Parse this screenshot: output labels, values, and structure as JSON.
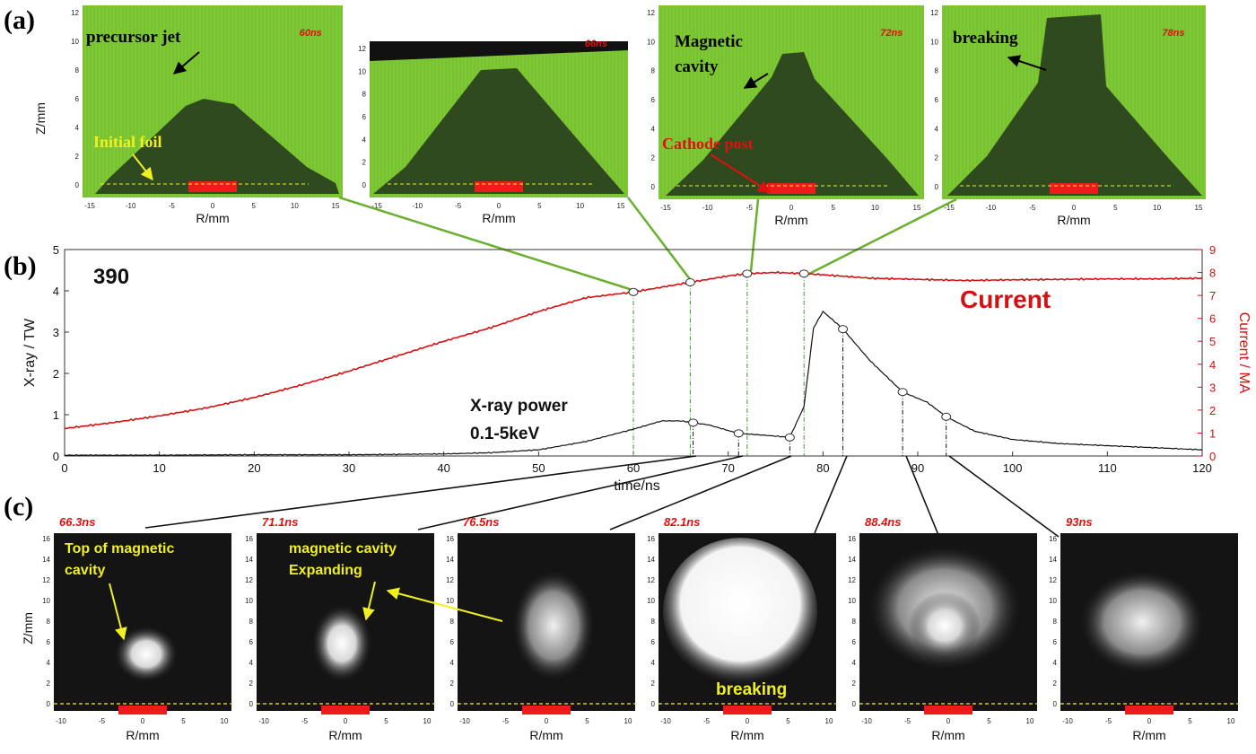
{
  "panel_labels": {
    "a": "(a)",
    "b": "(b)",
    "c": "(c)"
  },
  "panel_a": {
    "z_axis_label": "Z/mm",
    "r_axis_label": "R/mm",
    "z_ticks": [
      "0",
      "2",
      "4",
      "6",
      "8",
      "10",
      "12"
    ],
    "r_ticks": [
      "-15",
      "-10",
      "-5",
      "0",
      "5",
      "10",
      "15"
    ],
    "frames": [
      {
        "time": "60ns",
        "annotations": [
          "precursor jet",
          "Initial foil"
        ]
      },
      {
        "time": "66ns",
        "annotations": []
      },
      {
        "time": "72ns",
        "annotations": [
          "Magnetic",
          "cavity",
          "Cathode post"
        ]
      },
      {
        "time": "78ns",
        "annotations": [
          "breaking"
        ]
      }
    ]
  },
  "panel_b": {
    "shot_number": "390",
    "current_label": "Current",
    "xray_label_line1": "X-ray power",
    "xray_label_line2": "0.1-5keV",
    "left_axis_label": "X-ray / TW",
    "right_axis_label": "Current / MA",
    "x_axis_label": "time/ns",
    "x_ticks": [
      "0",
      "10",
      "20",
      "30",
      "40",
      "50",
      "60",
      "70",
      "80",
      "90",
      "100",
      "110",
      "120"
    ],
    "left_ticks": [
      "0",
      "1",
      "2",
      "3",
      "4",
      "5"
    ],
    "right_ticks": [
      "0",
      "1",
      "2",
      "3",
      "4",
      "5",
      "6",
      "7",
      "8",
      "9"
    ]
  },
  "panel_c": {
    "z_axis_label": "Z/mm",
    "r_axis_label": "R/mm",
    "z_ticks": [
      "0",
      "2",
      "4",
      "6",
      "8",
      "10",
      "12",
      "14",
      "16"
    ],
    "r_ticks": [
      "-10",
      "-5",
      "0",
      "5",
      "10"
    ],
    "frames": [
      {
        "time": "66.3ns",
        "annotations": [
          "Top of magnetic",
          "cavity"
        ]
      },
      {
        "time": "71.1ns",
        "annotations": [
          "magnetic cavity",
          "Expanding"
        ]
      },
      {
        "time": "76.5ns",
        "annotations": []
      },
      {
        "time": "82.1ns",
        "annotations": [
          "breaking"
        ]
      },
      {
        "time": "88.4ns",
        "annotations": []
      },
      {
        "time": "93ns",
        "annotations": []
      }
    ]
  },
  "chart_data": {
    "type": "line",
    "xlabel": "time/ns",
    "ylabel": "X-ray / TW",
    "y2label": "Current / MA",
    "xlim": [
      0,
      120
    ],
    "ylim": [
      0,
      5
    ],
    "y2lim": [
      0,
      9
    ],
    "grid": false,
    "series": [
      {
        "name": "Current",
        "axis": "right",
        "color": "#d41010",
        "x": [
          0,
          5,
          10,
          15,
          20,
          25,
          30,
          35,
          40,
          45,
          50,
          55,
          60,
          65,
          70,
          72,
          75,
          78,
          80,
          85,
          90,
          95,
          100,
          105,
          110,
          115,
          120
        ],
        "y": [
          1.2,
          1.45,
          1.75,
          2.1,
          2.55,
          3.1,
          3.7,
          4.35,
          5.0,
          5.6,
          6.3,
          6.9,
          7.15,
          7.5,
          7.85,
          7.95,
          8.0,
          7.95,
          7.9,
          7.75,
          7.7,
          7.65,
          7.68,
          7.7,
          7.72,
          7.72,
          7.75
        ]
      },
      {
        "name": "X-ray power",
        "axis": "left",
        "color": "#111111",
        "x": [
          0,
          10,
          20,
          30,
          40,
          45,
          50,
          55,
          60,
          63,
          65,
          68,
          71,
          74,
          76.5,
          78,
          79,
          80,
          82,
          85,
          88.4,
          91,
          93,
          96,
          100,
          105,
          110,
          115,
          120
        ],
        "y": [
          0.02,
          0.02,
          0.03,
          0.03,
          0.05,
          0.08,
          0.15,
          0.35,
          0.65,
          0.85,
          0.85,
          0.75,
          0.55,
          0.5,
          0.45,
          1.2,
          3.1,
          3.5,
          3.1,
          2.3,
          1.55,
          1.3,
          0.95,
          0.6,
          0.4,
          0.3,
          0.25,
          0.2,
          0.15
        ]
      }
    ],
    "markers": {
      "current_times": [
        60,
        66,
        72,
        78
      ],
      "xray_times": [
        66.3,
        71.1,
        76.5,
        82.1,
        88.4,
        93
      ]
    }
  }
}
